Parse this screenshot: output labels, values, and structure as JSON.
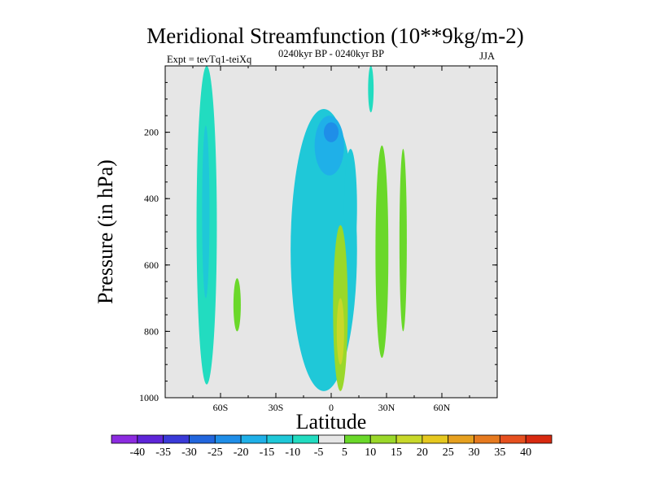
{
  "chart_data": {
    "type": "heatmap",
    "title": "Meridional Streamfunction (10**9kg/m-2)",
    "left_subtitle": "Expt = tevTq1-teiXq",
    "center_subtitle": "0240kyr BP - 0240kyr BP",
    "right_subtitle": "JJA",
    "xlabel": "Latitude",
    "ylabel": "Pressure (in hPa)",
    "xlim": [
      -90,
      90
    ],
    "ylim": [
      1000,
      0
    ],
    "x_ticks": [
      {
        "value": -60,
        "label": "60S"
      },
      {
        "value": -30,
        "label": "30S"
      },
      {
        "value": 0,
        "label": "0"
      },
      {
        "value": 30,
        "label": "30N"
      },
      {
        "value": 60,
        "label": "60N"
      }
    ],
    "y_ticks": [
      {
        "value": 200,
        "label": "200"
      },
      {
        "value": 400,
        "label": "400"
      },
      {
        "value": 600,
        "label": "600"
      },
      {
        "value": 800,
        "label": "800"
      },
      {
        "value": 1000,
        "label": "1000"
      }
    ],
    "background_color": "#e6e6e6",
    "contour_levels": [
      -40,
      -35,
      -30,
      -25,
      -20,
      -15,
      -10,
      -5,
      5,
      10,
      15,
      20,
      25,
      30,
      35,
      40
    ],
    "level_labels": [
      "-40",
      "-35",
      "-30",
      "-25",
      "-20",
      "-15",
      "-10",
      "-5",
      "5",
      "10",
      "15",
      "20",
      "25",
      "30",
      "35",
      "40"
    ],
    "colors": [
      "#8c2be0",
      "#5e25d8",
      "#3a3ad8",
      "#2266dd",
      "#1f8ee8",
      "#1fb0e8",
      "#1fc8d8",
      "#22dcc0",
      "#e6e6e6",
      "#6ad82a",
      "#9ad82a",
      "#c8d82a",
      "#e6c81f",
      "#e6a01f",
      "#e67a1f",
      "#e6501f",
      "#d82a10"
    ],
    "regions": [
      {
        "name": "southern-polar-band",
        "value": -7,
        "lat_min": -73,
        "lat_max": -62,
        "p_min": 0,
        "p_max": 960
      },
      {
        "name": "southern-polar-core",
        "value": -12,
        "lat_min": -70,
        "lat_max": -66,
        "p_min": 180,
        "p_max": 700
      },
      {
        "name": "southern-midlat-cell",
        "value": 7,
        "lat_min": -53,
        "lat_max": -49,
        "p_min": 640,
        "p_max": 800
      },
      {
        "name": "tropical-upper-cell",
        "value": -12,
        "lat_min": -22,
        "lat_max": 14,
        "p_min": 130,
        "p_max": 980
      },
      {
        "name": "tropical-upper-core",
        "value": -18,
        "lat_min": -9,
        "lat_max": 7,
        "p_min": 150,
        "p_max": 330
      },
      {
        "name": "tropical-upper-max",
        "value": -24,
        "lat_min": -4,
        "lat_max": 4,
        "p_min": 170,
        "p_max": 230
      },
      {
        "name": "tropical-descending-branch",
        "value": -15,
        "lat_min": 7,
        "lat_max": 14,
        "p_min": 250,
        "p_max": 600
      },
      {
        "name": "tropical-lower-positive-cell",
        "value": 12,
        "lat_min": 1,
        "lat_max": 9,
        "p_min": 480,
        "p_max": 980
      },
      {
        "name": "tropical-lower-positive-core",
        "value": 18,
        "lat_min": 3,
        "lat_max": 7,
        "p_min": 700,
        "p_max": 900
      },
      {
        "name": "northern-subtropical-cell",
        "value": 8,
        "lat_min": 24,
        "lat_max": 31,
        "p_min": 240,
        "p_max": 880
      },
      {
        "name": "northern-midlat-cell",
        "value": 7,
        "lat_min": 37,
        "lat_max": 41,
        "p_min": 250,
        "p_max": 800
      },
      {
        "name": "northern-upper-negative",
        "value": -7,
        "lat_min": 20,
        "lat_max": 23,
        "p_min": 0,
        "p_max": 140
      }
    ]
  }
}
